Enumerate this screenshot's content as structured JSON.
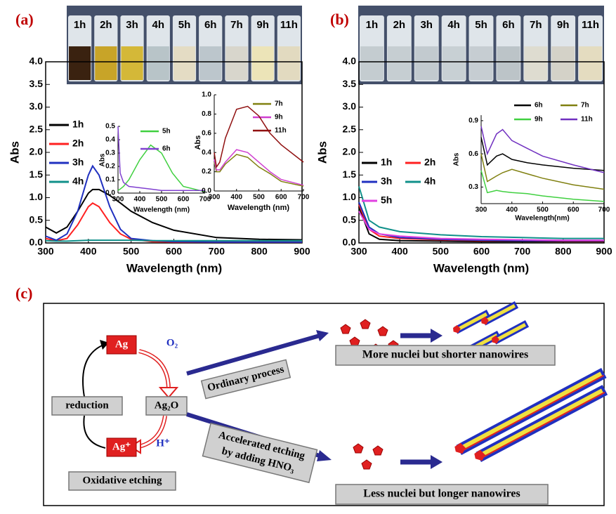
{
  "panels": [
    "(a)",
    "(b)",
    "(c)"
  ],
  "photos": [
    {
      "labels": [
        "1h",
        "2h",
        "3h",
        "4h",
        "5h",
        "6h",
        "7h",
        "9h",
        "11h"
      ]
    },
    {
      "labels": [
        "1h",
        "2h",
        "3h",
        "4h",
        "5h",
        "6h",
        "7h",
        "9h",
        "11h"
      ]
    }
  ],
  "chart_data": [
    {
      "type": "line",
      "x_label": "Wavelength (nm)",
      "y_label": "Abs",
      "x": [
        300,
        325,
        350,
        375,
        400,
        410,
        425,
        450,
        475,
        500,
        550,
        600,
        700,
        800,
        900
      ],
      "xlim": [
        300,
        900
      ],
      "xticks": [
        300,
        400,
        500,
        600,
        700,
        800,
        900
      ],
      "ylim": [
        0,
        4
      ],
      "yticks": [
        {
          "value": 0,
          "label": "0.0"
        },
        0.5,
        {
          "value": 1,
          "label": "1.0"
        },
        1.5,
        {
          "value": 2,
          "label": "2.0"
        },
        2.5,
        {
          "value": 3,
          "label": "3.0"
        },
        3.5,
        {
          "value": 4,
          "label": "4.0"
        }
      ],
      "grid": false,
      "series": [
        {
          "name": "1h",
          "color": "#000000",
          "values": [
            0.35,
            0.22,
            0.35,
            0.7,
            1.1,
            1.18,
            1.18,
            1.05,
            0.88,
            0.7,
            0.45,
            0.28,
            0.12,
            0.08,
            0.07
          ]
        },
        {
          "name": "2h",
          "color": "#ff2020",
          "values": [
            0.1,
            0.05,
            0.1,
            0.4,
            0.8,
            0.88,
            0.8,
            0.45,
            0.2,
            0.08,
            0.03,
            0.02,
            0.02,
            0.02,
            0.02
          ]
        },
        {
          "name": "3h",
          "color": "#2030c0",
          "values": [
            0.15,
            0.06,
            0.2,
            0.7,
            1.5,
            1.7,
            1.5,
            0.8,
            0.3,
            0.1,
            0.05,
            0.03,
            0.02,
            0.02,
            0.02
          ]
        },
        {
          "name": "4h",
          "color": "#10908a",
          "values": [
            0.05,
            0.04,
            0.04,
            0.05,
            0.06,
            0.06,
            0.06,
            0.06,
            0.06,
            0.06,
            0.05,
            0.05,
            0.05,
            0.05,
            0.05
          ]
        }
      ]
    },
    {
      "type": "line",
      "x_label": "Wavelength (nm)",
      "y_label": "Abs",
      "x": [
        300,
        310,
        325,
        350,
        400,
        450,
        500,
        550,
        600,
        700
      ],
      "xlim": [
        300,
        700
      ],
      "xticks": [
        300,
        400,
        500,
        600,
        700
      ],
      "ylim": [
        0,
        0.5
      ],
      "yticks": [
        {
          "value": 0,
          "label": "0.0"
        },
        0.1,
        0.2,
        0.3,
        0.4,
        0.5
      ],
      "grid": false,
      "series": [
        {
          "name": "5h",
          "color": "#40d040",
          "values": [
            0.02,
            0.03,
            0.05,
            0.1,
            0.25,
            0.36,
            0.3,
            0.15,
            0.05,
            0.01
          ]
        },
        {
          "name": "6h",
          "color": "#8040d0",
          "values": [
            0.5,
            0.15,
            0.08,
            0.05,
            0.04,
            0.03,
            0.02,
            0.02,
            0.02,
            0.02
          ]
        }
      ]
    },
    {
      "type": "line",
      "x_label": "Wavelength (nm)",
      "y_label": "Abs",
      "x": [
        300,
        310,
        325,
        350,
        400,
        450,
        500,
        550,
        600,
        700
      ],
      "xlim": [
        300,
        700
      ],
      "xticks": [
        300,
        400,
        500,
        600,
        700
      ],
      "ylim": [
        0,
        1
      ],
      "yticks": [
        {
          "value": 0,
          "label": "0.0"
        },
        0.2,
        0.4,
        0.6,
        0.8,
        {
          "value": 1,
          "label": "1.0"
        }
      ],
      "grid": false,
      "series": [
        {
          "name": "7h",
          "color": "#808010",
          "values": [
            0.3,
            0.2,
            0.2,
            0.28,
            0.38,
            0.35,
            0.25,
            0.18,
            0.1,
            0.05
          ]
        },
        {
          "name": "9h",
          "color": "#d040d0",
          "values": [
            0.33,
            0.22,
            0.22,
            0.3,
            0.43,
            0.4,
            0.3,
            0.2,
            0.12,
            0.06
          ]
        },
        {
          "name": "11h",
          "color": "#901010",
          "values": [
            0.4,
            0.25,
            0.3,
            0.55,
            0.85,
            0.88,
            0.78,
            0.6,
            0.48,
            0.3
          ]
        }
      ]
    },
    {
      "type": "line",
      "x_label": "Wavelength (nm)",
      "y_label": "Abs",
      "x": [
        300,
        325,
        350,
        400,
        500,
        600,
        700,
        800,
        900
      ],
      "xlim": [
        300,
        900
      ],
      "xticks": [
        300,
        400,
        500,
        600,
        700,
        800,
        900
      ],
      "ylim": [
        0,
        4
      ],
      "yticks": [
        {
          "value": 0,
          "label": "0.0"
        },
        0.5,
        {
          "value": 1,
          "label": "1.0"
        },
        1.5,
        {
          "value": 2,
          "label": "2.0"
        },
        2.5,
        {
          "value": 3,
          "label": "3.0"
        },
        3.5,
        {
          "value": 4,
          "label": "4.0"
        }
      ],
      "grid": false,
      "series": [
        {
          "name": "1h",
          "color": "#000000",
          "values": [
            0.8,
            0.2,
            0.08,
            0.05,
            0.04,
            0.03,
            0.03,
            0.03,
            0.03
          ]
        },
        {
          "name": "2h",
          "color": "#ff2020",
          "values": [
            0.85,
            0.3,
            0.15,
            0.1,
            0.07,
            0.05,
            0.05,
            0.04,
            0.04
          ]
        },
        {
          "name": "3h",
          "color": "#2030c0",
          "values": [
            0.9,
            0.35,
            0.2,
            0.12,
            0.08,
            0.06,
            0.05,
            0.05,
            0.05
          ]
        },
        {
          "name": "4h",
          "color": "#10908a",
          "values": [
            1.25,
            0.5,
            0.35,
            0.25,
            0.18,
            0.14,
            0.12,
            0.1,
            0.1
          ]
        },
        {
          "name": "5h",
          "color": "#e040e0",
          "values": [
            0.7,
            0.3,
            0.2,
            0.15,
            0.1,
            0.08,
            0.07,
            0.06,
            0.06
          ]
        }
      ]
    },
    {
      "type": "line",
      "x_label": "Wavelength(nm)",
      "y_label": "Abs",
      "x": [
        300,
        320,
        350,
        370,
        400,
        450,
        500,
        600,
        700
      ],
      "xlim": [
        300,
        700
      ],
      "xticks": [
        300,
        400,
        500,
        600,
        700
      ],
      "ylim": [
        0.15,
        0.95
      ],
      "yticks": [
        0.3,
        0.6,
        0.9
      ],
      "grid": false,
      "series": [
        {
          "name": "6h",
          "color": "#000000",
          "values": [
            0.75,
            0.5,
            0.58,
            0.6,
            0.55,
            0.52,
            0.5,
            0.47,
            0.45
          ]
        },
        {
          "name": "7h",
          "color": "#808010",
          "values": [
            0.6,
            0.35,
            0.4,
            0.43,
            0.46,
            0.42,
            0.38,
            0.32,
            0.28
          ]
        },
        {
          "name": "9h",
          "color": "#40d040",
          "values": [
            0.45,
            0.25,
            0.27,
            0.26,
            0.25,
            0.24,
            0.22,
            0.19,
            0.17
          ]
        },
        {
          "name": "11h",
          "color": "#7030c0",
          "values": [
            0.85,
            0.6,
            0.78,
            0.82,
            0.72,
            0.65,
            0.58,
            0.5,
            0.43
          ]
        }
      ]
    }
  ],
  "diagram": {
    "ag": "Ag",
    "o2": "O₂",
    "ag2o": "Ag₂O",
    "ag_plus": "Ag⁺",
    "h_plus": "H⁺",
    "reduction": "reduction",
    "oxidative": "Oxidative etching",
    "ordinary": "Ordinary process",
    "accelerated": [
      "Accelerated etching",
      "by adding HNO₃"
    ],
    "more": "More nuclei but shorter nanowires",
    "less": "Less nuclei but longer nanowires"
  }
}
